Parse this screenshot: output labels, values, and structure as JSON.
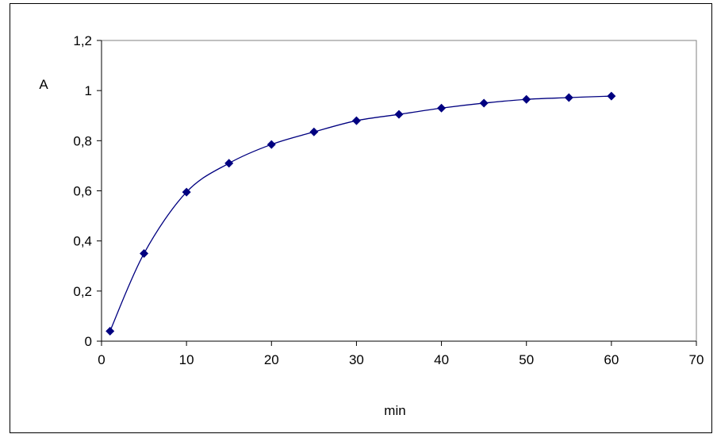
{
  "chart_data": {
    "type": "scatter",
    "title": "",
    "xlabel": "min",
    "ylabel": "A",
    "xlim": [
      0,
      70
    ],
    "ylim": [
      0,
      1.2
    ],
    "xticks": [
      0,
      10,
      20,
      30,
      40,
      50,
      60,
      70
    ],
    "yticks": [
      0,
      0.2,
      0.4,
      0.6,
      0.8,
      1,
      1.2
    ],
    "xtick_labels": [
      "0",
      "10",
      "20",
      "30",
      "40",
      "50",
      "60",
      "70"
    ],
    "ytick_labels": [
      "0",
      "0,2",
      "0,4",
      "0,6",
      "0,8",
      "1",
      "1,2"
    ],
    "grid": false,
    "legend": "none",
    "line": "smooth",
    "marker": "diamond",
    "series": [
      {
        "color": "#000080",
        "x": [
          1,
          5,
          10,
          15,
          20,
          25,
          30,
          35,
          40,
          45,
          50,
          55,
          60
        ],
        "y": [
          0.04,
          0.35,
          0.595,
          0.71,
          0.785,
          0.835,
          0.88,
          0.905,
          0.93,
          0.95,
          0.965,
          0.972,
          0.978
        ]
      }
    ]
  }
}
